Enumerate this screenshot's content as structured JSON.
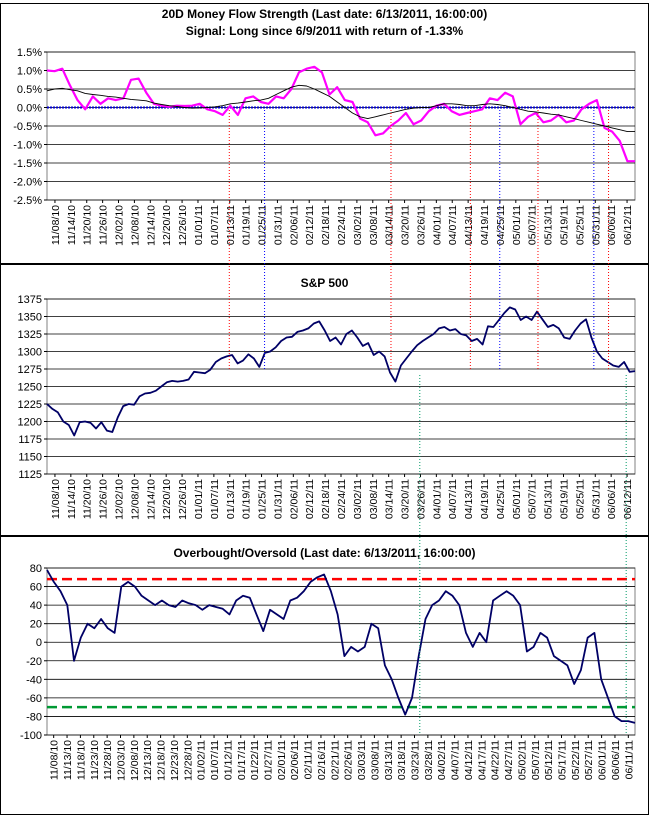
{
  "chart_data": [
    {
      "type": "line",
      "title": "20D Money Flow Strength (Last date: 6/13/2011, 16:00:00)",
      "subtitle": "Signal: Long since  6/9/2011 with return of -1.33%",
      "ylim": [
        -2.5,
        1.5
      ],
      "y_ticks": [
        "1.5%",
        "1.0%",
        "0.5%",
        "0.0%",
        "-0.5%",
        "-1.0%",
        "-1.5%",
        "-2.0%",
        "-2.5%"
      ],
      "y_tick_values": [
        1.5,
        1.0,
        0.5,
        0.0,
        -0.5,
        -1.0,
        -1.5,
        -2.0,
        -2.5
      ],
      "x_ticks": [
        "11/08/10",
        "11/14/10",
        "11/20/10",
        "11/26/10",
        "12/02/10",
        "12/08/10",
        "12/14/10",
        "12/20/10",
        "12/26/10",
        "01/01/11",
        "01/07/11",
        "01/13/11",
        "01/19/11",
        "01/25/11",
        "01/31/11",
        "02/06/11",
        "02/12/11",
        "02/18/11",
        "02/24/11",
        "03/02/11",
        "03/08/11",
        "03/14/11",
        "03/20/11",
        "03/26/11",
        "04/01/11",
        "04/07/11",
        "04/13/11",
        "04/19/11",
        "04/25/11",
        "05/01/11",
        "05/07/11",
        "05/13/11",
        "05/19/11",
        "05/25/11",
        "05/31/11",
        "06/06/11",
        "06/12/11"
      ],
      "series": [
        {
          "values": [
            1.0,
            0.98,
            1.05,
            0.6,
            0.2,
            -0.05,
            0.3,
            0.1,
            0.25,
            0.2,
            0.25,
            0.75,
            0.78,
            0.4,
            0.1,
            0.05,
            0.02,
            0.05,
            0.04,
            0.05,
            0.1,
            -0.05,
            -0.1,
            -0.2,
            0.05,
            -0.2,
            0.25,
            0.3,
            0.15,
            0.1,
            0.3,
            0.25,
            0.5,
            0.95,
            1.05,
            1.1,
            0.95,
            0.35,
            0.55,
            0.2,
            0.15,
            -0.3,
            -0.4,
            -0.75,
            -0.7,
            -0.5,
            -0.35,
            -0.15,
            -0.45,
            -0.35,
            -0.1,
            0.05,
            0.1,
            -0.1,
            -0.2,
            -0.15,
            -0.1,
            -0.05,
            0.25,
            0.2,
            0.4,
            0.3,
            -0.45,
            -0.25,
            -0.15,
            -0.4,
            -0.35,
            -0.2,
            -0.4,
            -0.35,
            -0.05,
            0.1,
            0.2,
            -0.55,
            -0.65,
            -0.9,
            -1.45,
            -1.45
          ],
          "color": "#ff00ff"
        },
        {
          "values": [
            0.45,
            0.5,
            0.52,
            0.48,
            0.45,
            0.38,
            0.35,
            0.33,
            0.3,
            0.28,
            0.25,
            0.22,
            0.2,
            0.18,
            0.12,
            0.08,
            0.05,
            0.03,
            0.0,
            -0.02,
            -0.01,
            0.0,
            0.02,
            0.05,
            0.1,
            0.12,
            0.15,
            0.18,
            0.2,
            0.25,
            0.35,
            0.45,
            0.55,
            0.6,
            0.58,
            0.5,
            0.4,
            0.3,
            0.15,
            0.0,
            -0.15,
            -0.25,
            -0.3,
            -0.25,
            -0.2,
            -0.15,
            -0.1,
            -0.05,
            -0.02,
            0.0,
            0.0,
            0.05,
            0.1,
            0.1,
            0.08,
            0.05,
            0.05,
            0.08,
            0.1,
            0.08,
            0.05,
            0.0,
            -0.05,
            -0.1,
            -0.12,
            -0.15,
            -0.18,
            -0.2,
            -0.25,
            -0.3,
            -0.35,
            -0.4,
            -0.45,
            -0.5,
            -0.55,
            -0.6,
            -0.65,
            -0.65
          ],
          "color": "#000000"
        }
      ],
      "zero_line_color": "#0000cc",
      "grid": true
    },
    {
      "type": "line",
      "title": "S&P 500",
      "ylim": [
        1125,
        1375
      ],
      "y_ticks": [
        "1375",
        "1350",
        "1325",
        "1300",
        "1275",
        "1250",
        "1225",
        "1200",
        "1175",
        "1150",
        "1125"
      ],
      "y_tick_values": [
        1375,
        1350,
        1325,
        1300,
        1275,
        1250,
        1225,
        1200,
        1175,
        1150,
        1125
      ],
      "x_ticks": [
        "11/08/10",
        "11/14/10",
        "11/20/10",
        "11/26/10",
        "12/02/10",
        "12/08/10",
        "12/14/10",
        "12/20/10",
        "12/26/10",
        "01/01/11",
        "01/07/11",
        "01/13/11",
        "01/19/11",
        "01/25/11",
        "01/31/11",
        "02/06/11",
        "02/12/11",
        "02/18/11",
        "02/24/11",
        "03/02/11",
        "03/08/11",
        "03/14/11",
        "03/20/11",
        "03/26/11",
        "04/01/11",
        "04/07/11",
        "04/13/11",
        "04/19/11",
        "04/25/11",
        "05/01/11",
        "05/07/11",
        "05/13/11",
        "05/19/11",
        "05/25/11",
        "05/31/11",
        "06/06/11",
        "06/12/11"
      ],
      "series": [
        {
          "values": [
            1225,
            1218,
            1213,
            1200,
            1195,
            1180,
            1199,
            1200,
            1198,
            1190,
            1199,
            1187,
            1185,
            1206,
            1222,
            1225,
            1224,
            1236,
            1240,
            1241,
            1244,
            1250,
            1256,
            1258,
            1257,
            1258,
            1260,
            1271,
            1270,
            1269,
            1274,
            1285,
            1290,
            1293,
            1295,
            1283,
            1287,
            1296,
            1290,
            1278,
            1298,
            1300,
            1306,
            1315,
            1320,
            1321,
            1328,
            1330,
            1333,
            1340,
            1343,
            1330,
            1315,
            1320,
            1310,
            1325,
            1330,
            1320,
            1308,
            1312,
            1295,
            1300,
            1293,
            1270,
            1257,
            1280,
            1290,
            1300,
            1309,
            1315,
            1320,
            1325,
            1333,
            1335,
            1330,
            1332,
            1325,
            1323,
            1315,
            1318,
            1310,
            1336,
            1335,
            1345,
            1355,
            1363,
            1360,
            1345,
            1350,
            1345,
            1357,
            1346,
            1335,
            1338,
            1333,
            1320,
            1318,
            1330,
            1340,
            1346,
            1320,
            1300,
            1290,
            1285,
            1280,
            1278,
            1285,
            1271,
            1272
          ],
          "color": "#000066"
        }
      ],
      "grid": true
    },
    {
      "type": "line",
      "title": "Overbought/Oversold (Last date: 6/13/2011, 16:00:00)",
      "ylim": [
        -100,
        80
      ],
      "y_ticks": [
        "80",
        "60",
        "40",
        "20",
        "0",
        "-20",
        "-40",
        "-60",
        "-80",
        "-100"
      ],
      "y_tick_values": [
        80,
        60,
        40,
        20,
        0,
        -20,
        -40,
        -60,
        -80,
        -100
      ],
      "x_ticks": [
        "11/08/10",
        "11/13/10",
        "11/18/10",
        "11/23/10",
        "11/28/10",
        "12/03/10",
        "12/08/10",
        "12/13/10",
        "12/18/10",
        "12/23/10",
        "12/28/10",
        "01/02/11",
        "01/07/11",
        "01/12/11",
        "01/17/11",
        "01/22/11",
        "01/27/11",
        "02/01/11",
        "02/06/11",
        "02/11/11",
        "02/16/11",
        "02/21/11",
        "02/26/11",
        "03/03/11",
        "03/08/11",
        "03/13/11",
        "03/18/11",
        "03/23/11",
        "03/28/11",
        "04/02/11",
        "04/07/11",
        "04/12/11",
        "04/17/11",
        "04/22/11",
        "04/27/11",
        "05/02/11",
        "05/07/11",
        "05/12/11",
        "05/17/11",
        "05/22/11",
        "05/27/11",
        "06/01/11",
        "06/06/11",
        "06/11/11"
      ],
      "series": [
        {
          "values": [
            78,
            65,
            55,
            40,
            -20,
            5,
            20,
            15,
            25,
            15,
            10,
            60,
            65,
            60,
            50,
            45,
            40,
            45,
            40,
            38,
            45,
            42,
            40,
            35,
            40,
            38,
            36,
            30,
            45,
            50,
            48,
            30,
            12,
            35,
            30,
            25,
            45,
            48,
            55,
            65,
            70,
            73,
            55,
            30,
            -15,
            -5,
            -10,
            -5,
            20,
            15,
            -25,
            -40,
            -60,
            -78,
            -60,
            -15,
            25,
            40,
            45,
            55,
            50,
            40,
            10,
            -5,
            10,
            0,
            45,
            50,
            55,
            50,
            40,
            -10,
            -5,
            10,
            5,
            -15,
            -20,
            -25,
            -45,
            -30,
            5,
            10,
            -40,
            -60,
            -80,
            -85,
            -85,
            -87
          ],
          "color": "#000066"
        }
      ],
      "reference_lines": [
        {
          "value": 68,
          "color": "#ff0000",
          "style": "dashed"
        },
        {
          "value": -70,
          "color": "#009933",
          "style": "dashed"
        }
      ],
      "grid": true
    }
  ],
  "signal_lines": [
    {
      "date_index": 0.31,
      "color": "#ff0000"
    },
    {
      "date_index": 0.37,
      "color": "#0000ff"
    },
    {
      "date_index": 0.585,
      "color": "#ff0000"
    },
    {
      "date_index": 0.72,
      "color": "#ff0000"
    },
    {
      "date_index": 0.77,
      "color": "#0000ff"
    },
    {
      "date_index": 0.835,
      "color": "#ff0000"
    },
    {
      "date_index": 0.93,
      "color": "#0000ff"
    },
    {
      "date_index": 0.955,
      "color": "#ff0000"
    },
    {
      "date_index": 0.634,
      "color": "#009966"
    },
    {
      "date_index": 0.985,
      "color": "#009966"
    }
  ]
}
